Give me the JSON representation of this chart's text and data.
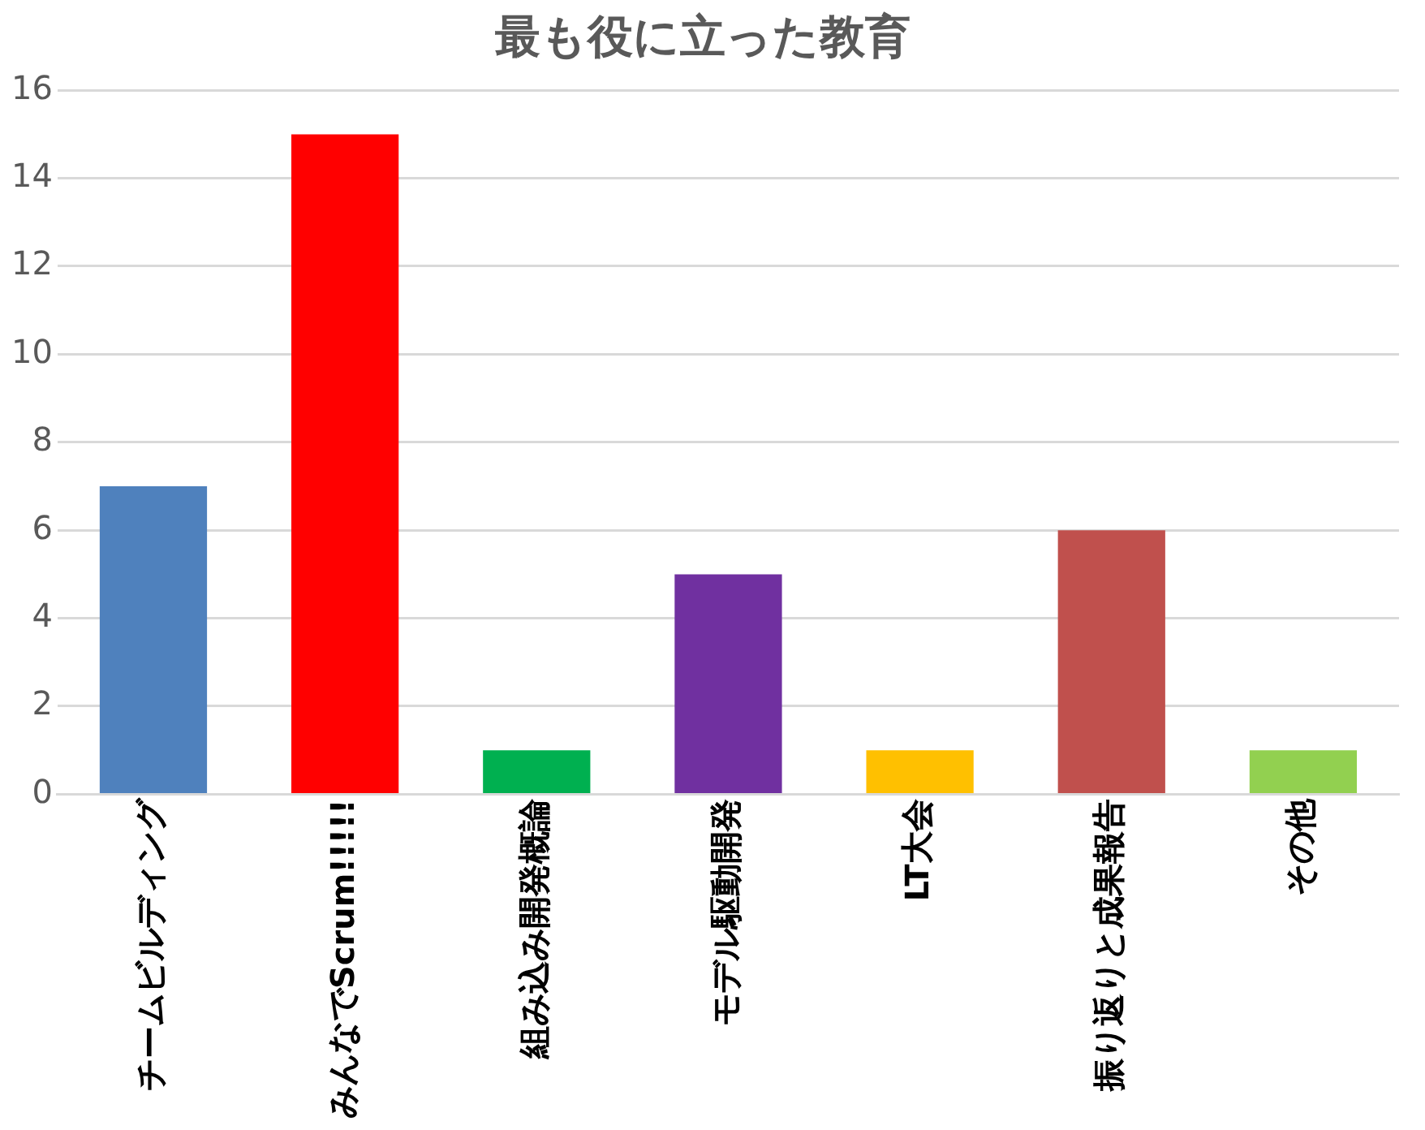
{
  "chart_data": {
    "type": "bar",
    "title": "最も役に立った教育",
    "categories": [
      "チームビルディング",
      "みんなでScrum!!!!!",
      "組み込み開発概論",
      "モデル駆動開発",
      "LT大会",
      "振り返りと成果報告",
      "その他"
    ],
    "values": [
      7,
      15,
      1,
      5,
      1,
      6,
      1
    ],
    "colors": [
      "#4f81bd",
      "#ff0000",
      "#00b050",
      "#7030a0",
      "#ffc000",
      "#c0504d",
      "#92d050"
    ],
    "ylim": [
      0,
      16
    ],
    "yticks": [
      0,
      2,
      4,
      6,
      8,
      10,
      12,
      14,
      16
    ],
    "grid": "y",
    "legend": false
  }
}
